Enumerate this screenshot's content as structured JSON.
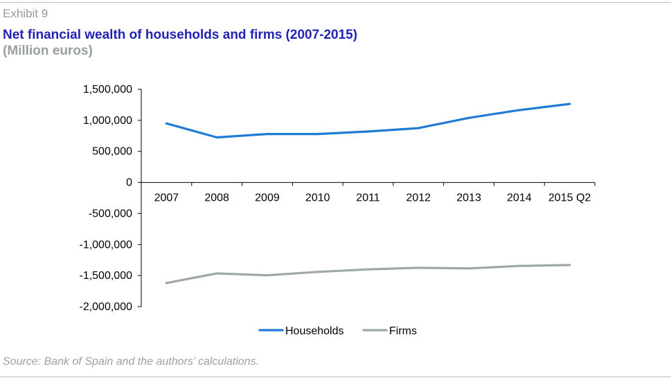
{
  "header": {
    "exhibit": "Exhibit 9",
    "title": "Net financial wealth of households and firms (2007-2015)",
    "subtitle": "(Million euros)"
  },
  "footer": {
    "source": "Source: Bank of Spain and the authors’ calculations."
  },
  "colors": {
    "households": "#1f7bd4",
    "firms": "#9ea7a7",
    "axis": "#000000"
  },
  "chart_data": {
    "type": "line",
    "categories": [
      "2007",
      "2008",
      "2009",
      "2010",
      "2011",
      "2012",
      "2013",
      "2014",
      "2015 Q2"
    ],
    "series": [
      {
        "name": "Households",
        "values": [
          950000,
          725000,
          780000,
          780000,
          820000,
          875000,
          1040000,
          1165000,
          1265000
        ]
      },
      {
        "name": "Firms",
        "values": [
          -1620000,
          -1465000,
          -1495000,
          -1440000,
          -1400000,
          -1375000,
          -1385000,
          -1345000,
          -1330000
        ]
      }
    ],
    "ylim": [
      -2000000,
      1500000
    ],
    "yticks": [
      1500000,
      1000000,
      500000,
      0,
      -500000,
      -1000000,
      -1500000,
      -2000000
    ],
    "ytick_labels": [
      "1,500,000",
      "1,000,000",
      "500,000",
      "0",
      "-500,000",
      "-1,000,000",
      "-1,500,000",
      "-2,000,000"
    ],
    "grid": false,
    "legend_position": "bottom-center"
  }
}
